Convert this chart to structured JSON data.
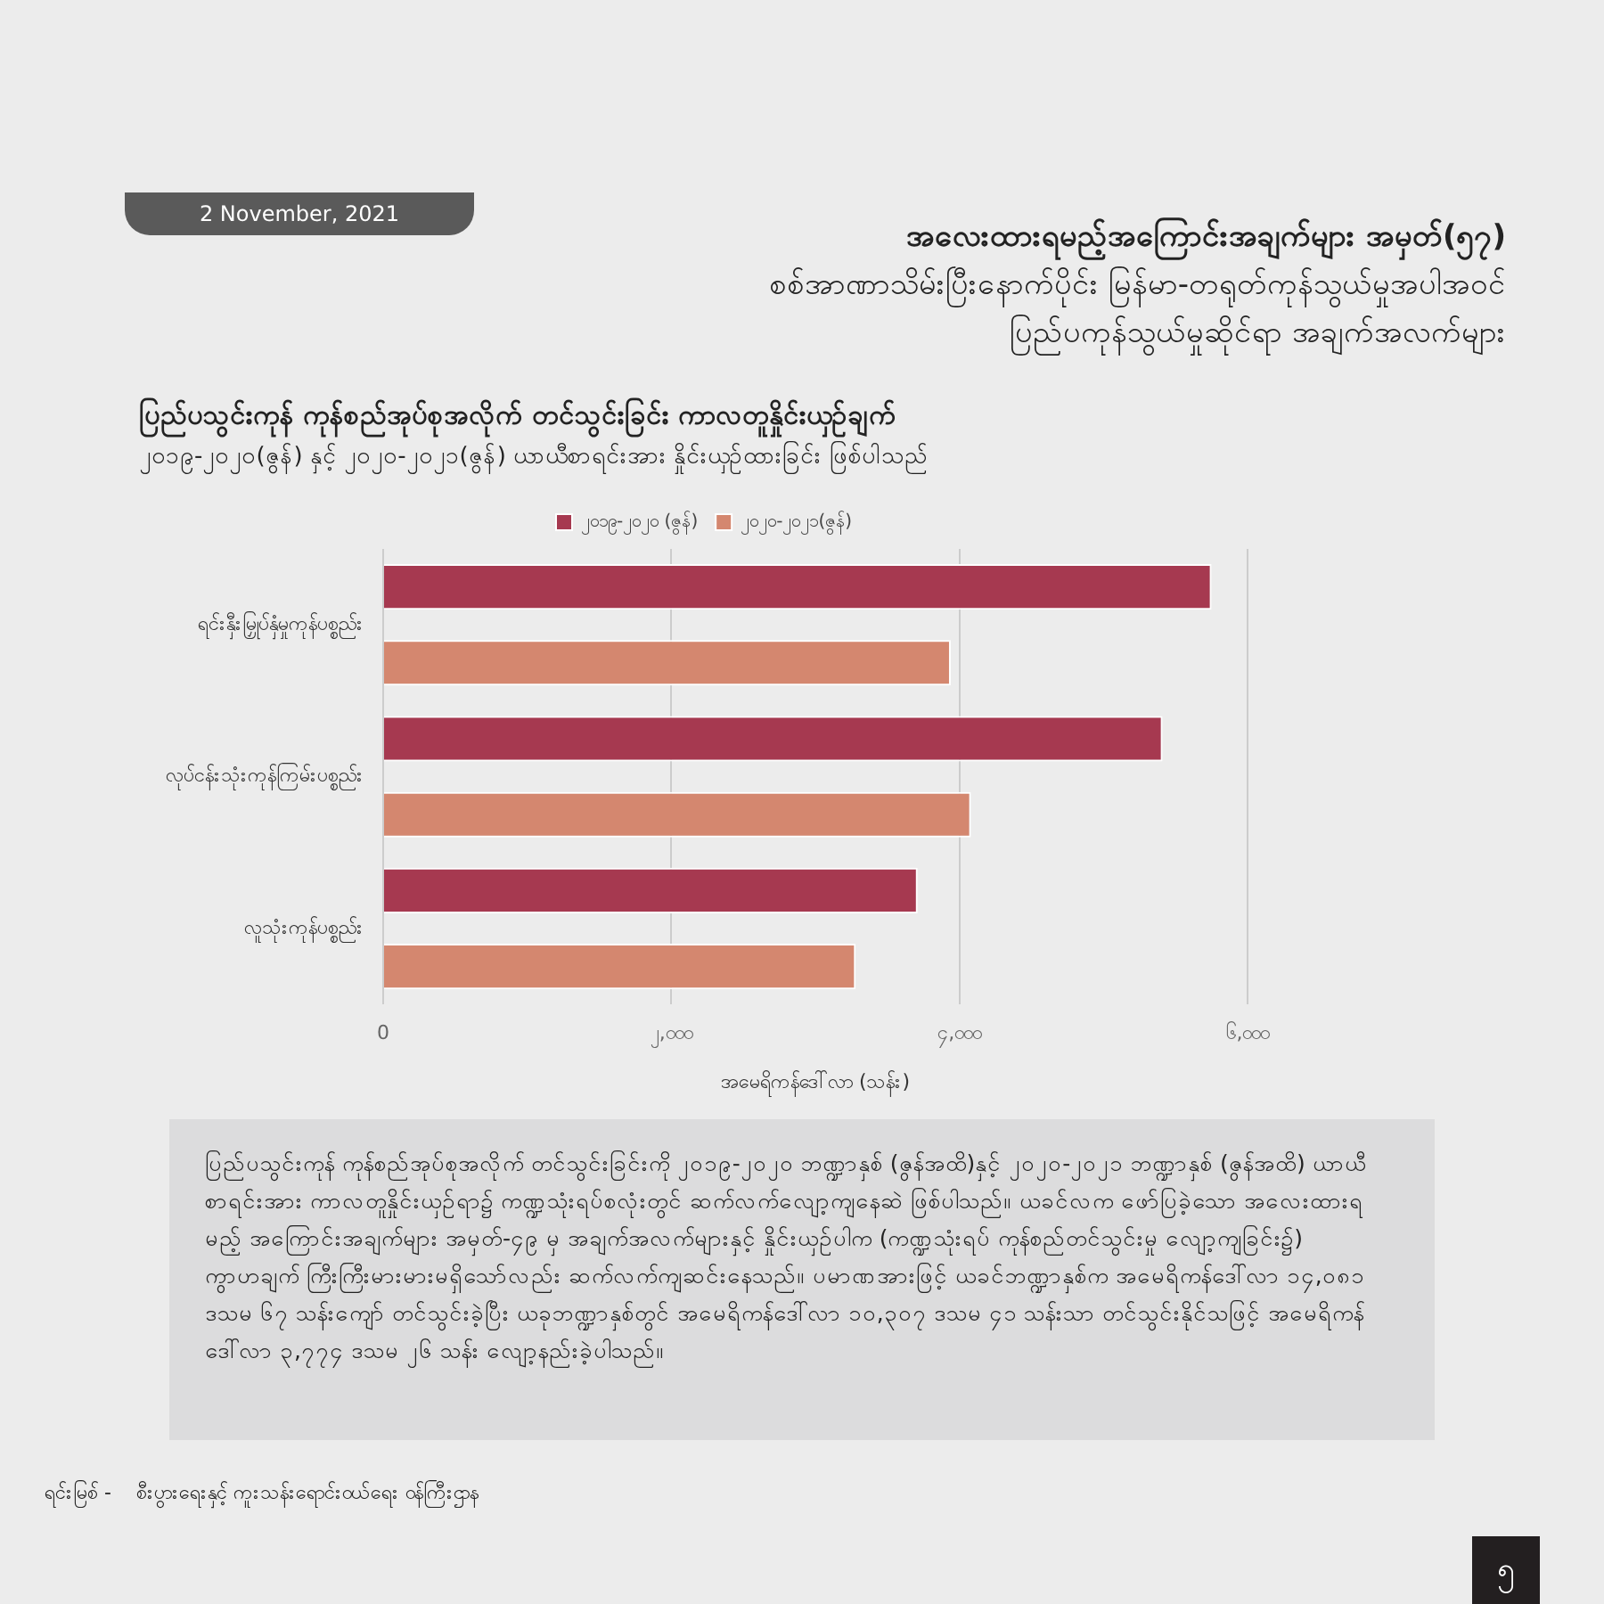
{
  "chart_data": {
    "type": "bar",
    "orientation": "horizontal",
    "title": "ပြည်ပသွင်းကုန် ကုန်စည်အုပ်စုအလိုက် တင်သွင်းခြင်း ကာလတူနှိုင်းယှဉ်ချက်",
    "subtitle": "၂၀၁၉-၂၀၂၀(ဇွန်) နှင့် ၂၀၂၀-၂၀၂၁(ဇွန်) ယာယီစာရင်းအား နှိုင်းယှဉ်ထားခြင်း ဖြစ်ပါသည်",
    "xlabel": "အမေရိကန်ဒေါ်လာ (သန်း)",
    "categories": [
      "ရင်းနှီးမြှုပ်နှံမှုကုန်ပစ္စည်း",
      "လုပ်ငန်းသုံးကုန်ကြမ်းပစ္စည်း",
      "လူသုံးကုန်ပစ္စည်း"
    ],
    "series": [
      {
        "name": "၂၀၁၉-၂၀၂၀ (ဇွန်)",
        "color": "#a63950",
        "values": [
          5750,
          5410,
          3710
        ]
      },
      {
        "name": "၂၀၂၀-၂၀၂၁(ဇွန်)",
        "color": "#d4876f",
        "values": [
          3940,
          4080,
          3280
        ]
      }
    ],
    "xlim": [
      0,
      6000
    ],
    "xticks": [
      0,
      {
        "value": 2000,
        "label": "၂,၀၀၀"
      },
      {
        "value": 4000,
        "label": "၄,၀၀၀"
      },
      {
        "value": 6000,
        "label": "၆,၀၀၀"
      }
    ],
    "grid": "x",
    "legend": "top",
    "annotations": [
      "2 November, 2021",
      "အလေးထားရမည့်အကြောင်းအချက်များ အမှတ်(၅၇)",
      "စစ်အာဏာသိမ်းပြီးနောက်ပိုင်း မြန်မာ-တရုတ်ကုန်သွယ်မှုအပါအဝင်",
      "ပြည်ပကုန်သွယ်မှုဆိုင်ရာ အချက်အလက်များ",
      "ပြည်ပသွင်းကုန် ကုန်စည်အုပ်စုအလိုက် တင်သွင်းခြင်းကို ၂၀၁၉-၂၀၂၀ ဘဏ္ဍာနှစ် (ဇွန်အထိ)နှင့် ၂၀၂၀-၂၀၂၁ ဘဏ္ဍာနှစ် (ဇွန်အထိ) ယာယီစာရင်းအား ကာလတူနှိုင်းယှဉ်ရာ၌ ကဏ္ဍသုံးရပ်စလုံးတွင် ဆက်လက်လျော့ကျနေဆဲ ဖြစ်ပါသည်။ ယခင်လက ဖော်ပြခဲ့သော အလေးထားရမည့် အကြောင်းအချက်များ အမှတ်-၄၉ မှ အချက်အလက်များနှင့် နှိုင်းယှဉ်ပါက (ကဏ္ဍသုံးရပ် ကုန်စည်တင်သွင်းမှု လျော့ကျခြင်း၌) ကွာဟချက် ကြီးကြီးမားမားမရှိသော်လည်း ဆက်လက်ကျဆင်းနေသည်။ ပမာဏအားဖြင့် ယခင်ဘဏ္ဍာနှစ်က အမေရိကန်ဒေါ်လာ ၁၄,၀၈၁ ဒသမ ၆၇ သန်းကျော် တင်သွင်းခဲ့ပြီး ယခုဘဏ္ဍာနှစ်တွင် အမေရိကန်ဒေါ်လာ ၁၀,၃၀၇ ဒသမ ၄၁ သန်းသာ တင်သွင်းနိုင်သဖြင့် အမေရိကန်ဒေါ်လာ ၃,၇၇၄ ဒသမ ၂၆ သန်း လျော့နည်းခဲ့ပါသည်။",
      "ရင်းမြစ် -    စီးပွားရေးနှင့် ကူးသန်းရောင်းဝယ်ရေး ဝန်ကြီးဌာန",
      "၅"
    ]
  }
}
